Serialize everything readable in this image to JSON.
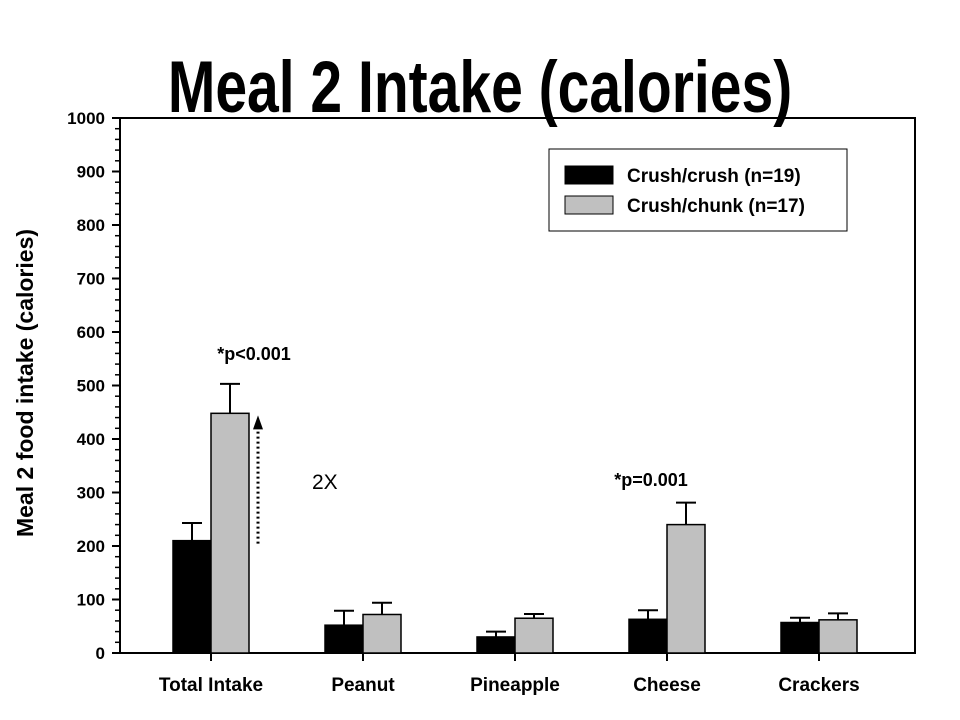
{
  "chart_data": {
    "type": "bar",
    "title": "Meal 2 Intake (calories)",
    "xlabel": "",
    "ylabel": "Meal 2 food intake (calories)",
    "ylim": [
      0,
      1000
    ],
    "yticks": [
      0,
      100,
      200,
      300,
      400,
      500,
      600,
      700,
      800,
      900,
      1000
    ],
    "categories": [
      "Total Intake",
      "Peanut",
      "Pineapple",
      "Cheese",
      "Crackers"
    ],
    "series": [
      {
        "name": "Crush/crush (n=19)",
        "color": "#000000",
        "values": [
          210,
          52,
          30,
          63,
          57
        ],
        "errors": [
          33,
          27,
          10,
          17,
          9
        ]
      },
      {
        "name": "Crush/chunk (n=17)",
        "color": "#c0c0c0",
        "values": [
          448,
          72,
          65,
          240,
          62
        ],
        "errors": [
          55,
          22,
          8,
          41,
          12
        ]
      }
    ],
    "legend_position": "top-right",
    "grid": false,
    "annotations": [
      {
        "text": "*p<0.001",
        "category": "Total Intake"
      },
      {
        "text": "2X",
        "category": "Total Intake"
      },
      {
        "text": "*p=0.001",
        "category": "Cheese"
      }
    ]
  }
}
